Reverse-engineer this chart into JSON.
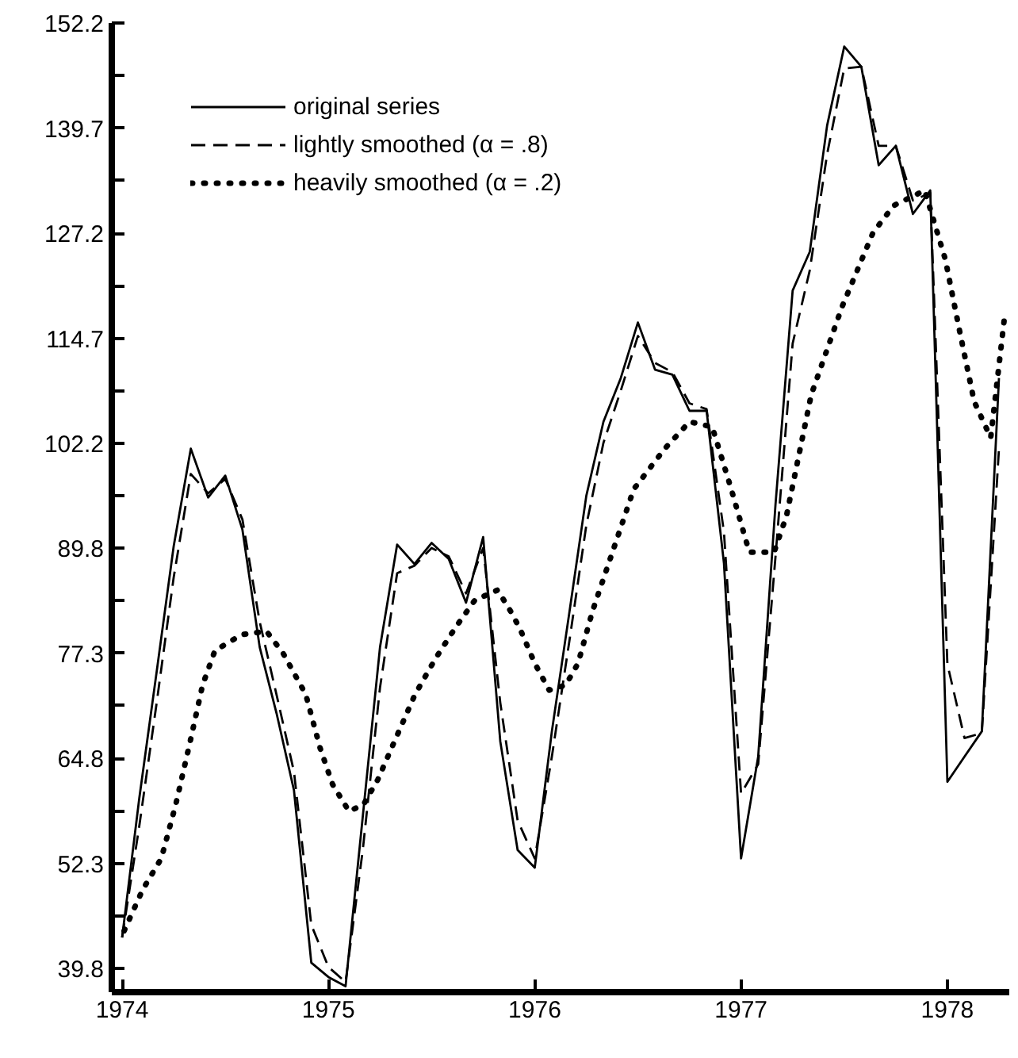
{
  "chart_data": {
    "type": "line",
    "xlim": [
      1973.95,
      1978.3
    ],
    "ylim": [
      37.0,
      152.2
    ],
    "xticks": [
      1974,
      1975,
      1976,
      1977,
      1978
    ],
    "yticks": [
      39.8,
      {
        "value": 46.05,
        "label": null
      },
      52.3,
      {
        "value": 58.55,
        "label": null
      },
      64.8,
      {
        "value": 71.05,
        "label": null
      },
      77.3,
      {
        "value": 83.55,
        "label": null
      },
      89.8,
      {
        "value": 96.0,
        "label": null
      },
      102.2,
      {
        "value": 108.45,
        "label": null
      },
      114.7,
      {
        "value": 120.95,
        "label": null
      },
      127.2,
      {
        "value": 133.45,
        "label": null
      },
      139.7,
      {
        "value": 145.95,
        "label": null
      },
      152.2
    ],
    "x": [
      1974.0,
      1974.083,
      1974.167,
      1974.25,
      1974.333,
      1974.417,
      1974.5,
      1974.583,
      1974.667,
      1974.75,
      1974.833,
      1974.917,
      1975.0,
      1975.083,
      1975.167,
      1975.25,
      1975.333,
      1975.417,
      1975.5,
      1975.583,
      1975.667,
      1975.75,
      1975.833,
      1975.917,
      1976.0,
      1976.083,
      1976.167,
      1976.25,
      1976.333,
      1976.417,
      1976.5,
      1976.583,
      1976.667,
      1976.75,
      1976.833,
      1976.917,
      1977.0,
      1977.083,
      1977.167,
      1977.25,
      1977.333,
      1977.417,
      1977.5,
      1977.583,
      1977.667,
      1977.75,
      1977.833,
      1977.917,
      1978.0,
      1978.083,
      1978.167,
      1978.25
    ],
    "grid": false,
    "legend": "top left",
    "marker": "none",
    "series": [
      {
        "name": "original series",
        "color": "#000000",
        "line_style": "solid",
        "values": [
          43.5,
          60,
          75,
          90,
          101.6,
          95.8,
          98.4,
          92,
          78,
          70,
          61,
          40.5,
          38.8,
          37.7,
          58,
          78,
          90.2,
          87.9,
          90.4,
          88.5,
          83.3,
          91.1,
          66.8,
          53.9,
          51.8,
          68,
          82,
          96,
          104.8,
          110,
          116.6,
          111,
          110.4,
          106.1,
          106.1,
          88,
          52.9,
          65,
          95,
          120.4,
          125,
          140,
          149.4,
          147,
          135.3,
          137.6,
          129.5,
          132.3,
          62,
          65,
          68,
          110
        ]
      },
      {
        "name": "lightly smoothed (α = .8)",
        "color": "#000000",
        "line_style": "dashed",
        "values": [
          43.5,
          56.7,
          71.3,
          86.3,
          98.6,
          96.3,
          98.0,
          93.2,
          81.0,
          72.2,
          63.2,
          45.0,
          40.0,
          38.2,
          54.0,
          73.2,
          86.8,
          87.7,
          89.8,
          88.8,
          84.4,
          89.8,
          71.4,
          57.4,
          52.9,
          65.0,
          78.6,
          92.5,
          102.3,
          108.5,
          115.0,
          111.8,
          110.7,
          107.0,
          106.3,
          91.7,
          60.6,
          64.1,
          88.8,
          114.1,
          122.8,
          136.6,
          146.8,
          147.0,
          137.6,
          137.6,
          131.1,
          132.0,
          76.0,
          67.2,
          67.8,
          101.6
        ]
      },
      {
        "name": "heavily smoothed (α = .2)",
        "color": "#000000",
        "line_style": "dotted",
        "x": [
          1974.01,
          1974.1,
          1974.19,
          1974.26,
          1974.33,
          1974.39,
          1974.45,
          1974.58,
          1974.7,
          1974.78,
          1974.89,
          1974.96,
          1975.02,
          1975.1,
          1975.17,
          1975.24,
          1975.32,
          1975.42,
          1975.52,
          1975.62,
          1975.71,
          1975.82,
          1975.89,
          1975.93,
          1976.0,
          1976.07,
          1976.15,
          1976.21,
          1976.28,
          1976.48,
          1976.63,
          1976.75,
          1976.86,
          1976.95,
          1977.04,
          1977.16,
          1977.22,
          1977.34,
          1977.49,
          1977.64,
          1977.74,
          1977.89,
          1977.99,
          1978.06,
          1978.13,
          1978.21,
          1978.28
        ],
        "values": [
          44.3,
          49.2,
          52.9,
          59.3,
          66.8,
          73.5,
          77.6,
          79.5,
          79.9,
          77.3,
          72.4,
          66.0,
          61.7,
          58.5,
          59.3,
          62.3,
          66.8,
          72.4,
          76.7,
          80.5,
          83.6,
          84.8,
          82.0,
          80.1,
          76.1,
          72.9,
          73.5,
          76.1,
          82.3,
          96.8,
          101.6,
          104.8,
          104.2,
          97,
          89.3,
          89.3,
          93.6,
          108,
          118.5,
          127.3,
          130.5,
          132.3,
          124.1,
          115.5,
          107.2,
          102.9,
          117.9
        ]
      }
    ]
  }
}
